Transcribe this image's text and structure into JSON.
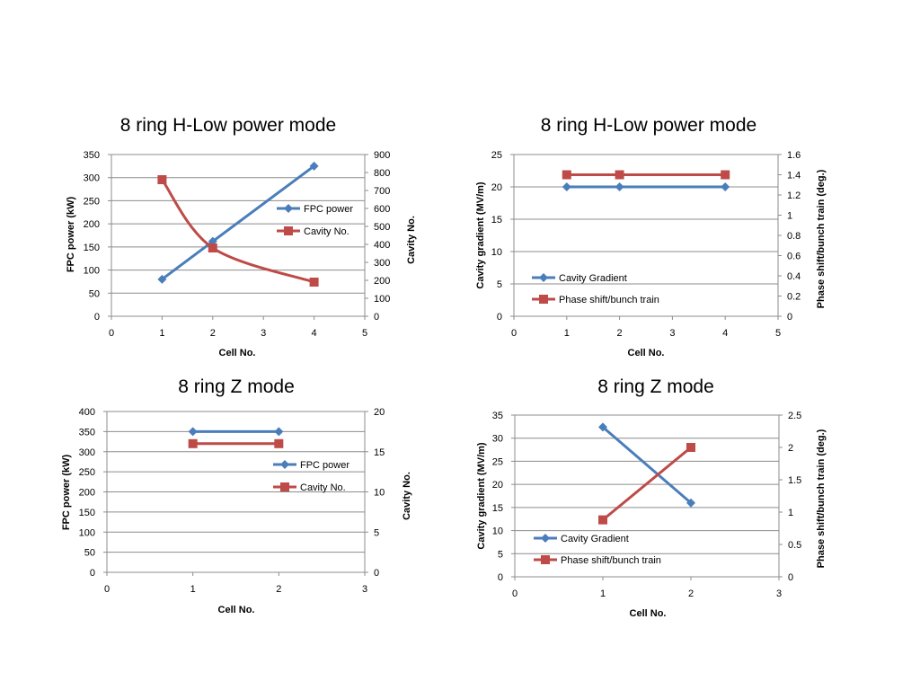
{
  "chart_data": [
    {
      "type": "line",
      "title": "8 ring H-Low power mode",
      "xlabel": "Cell No.",
      "ylabel": "FPC power (kW)",
      "y2label": "Cavity No.",
      "xlim": [
        0,
        5
      ],
      "xticks": [
        "0",
        "1",
        "2",
        "3",
        "4",
        "5"
      ],
      "ylim": [
        0,
        350
      ],
      "yticks": [
        "0",
        "50",
        "100",
        "150",
        "200",
        "250",
        "300",
        "350"
      ],
      "y2lim": [
        0,
        900
      ],
      "y2ticks": [
        "0",
        "100",
        "200",
        "300",
        "400",
        "500",
        "600",
        "700",
        "800",
        "900"
      ],
      "grid": true,
      "legend_position": "center-right",
      "series": [
        {
          "name": "FPC power",
          "axis": "left",
          "color": "#4a7ebb",
          "marker": "diamond",
          "smooth": false,
          "x": [
            1,
            2,
            4
          ],
          "values": [
            80,
            162,
            325
          ]
        },
        {
          "name": "Cavity No.",
          "axis": "right",
          "color": "#be4b48",
          "marker": "square",
          "smooth": true,
          "x": [
            1,
            2,
            4
          ],
          "values": [
            760,
            380,
            190
          ]
        }
      ]
    },
    {
      "type": "line",
      "title": "8 ring H-Low power mode",
      "xlabel": "Cell No.",
      "ylabel": "Cavity gradient (MV/m)",
      "y2label": "Phase shift/bunch train (deg.)",
      "xlim": [
        0,
        5
      ],
      "xticks": [
        "0",
        "1",
        "2",
        "3",
        "4",
        "5"
      ],
      "ylim": [
        0,
        25
      ],
      "yticks": [
        "0",
        "5",
        "10",
        "15",
        "20",
        "25"
      ],
      "y2lim": [
        0,
        1.6
      ],
      "y2ticks": [
        "0",
        "0.2",
        "0.4",
        "0.6",
        "0.8",
        "1",
        "1.2",
        "1.4",
        "1.6"
      ],
      "grid": true,
      "legend_position": "bottom-left",
      "series": [
        {
          "name": "Cavity Gradient",
          "axis": "left",
          "color": "#4a7ebb",
          "marker": "diamond",
          "smooth": false,
          "x": [
            1,
            2,
            4
          ],
          "values": [
            20,
            20,
            20
          ]
        },
        {
          "name": "Phase shift/bunch train",
          "axis": "right",
          "color": "#be4b48",
          "marker": "square",
          "smooth": false,
          "x": [
            1,
            2,
            4
          ],
          "values": [
            1.4,
            1.4,
            1.4
          ]
        }
      ]
    },
    {
      "type": "line",
      "title": "8 ring Z mode",
      "xlabel": "Cell No.",
      "ylabel": "FPC power (kW)",
      "y2label": "Cavity No.",
      "xlim": [
        0,
        3
      ],
      "xticks": [
        "0",
        "1",
        "2",
        "3"
      ],
      "ylim": [
        0,
        400
      ],
      "yticks": [
        "0",
        "50",
        "100",
        "150",
        "200",
        "250",
        "300",
        "350",
        "400"
      ],
      "y2lim": [
        0,
        20
      ],
      "y2ticks": [
        "0",
        "5",
        "10",
        "15",
        "20"
      ],
      "grid": true,
      "legend_position": "center-right",
      "series": [
        {
          "name": "FPC power",
          "axis": "left",
          "color": "#4a7ebb",
          "marker": "diamond",
          "smooth": false,
          "x": [
            1,
            2
          ],
          "values": [
            350,
            350
          ]
        },
        {
          "name": "Cavity No.",
          "axis": "right",
          "color": "#be4b48",
          "marker": "square",
          "smooth": false,
          "x": [
            1,
            2
          ],
          "values": [
            16,
            16
          ]
        }
      ]
    },
    {
      "type": "line",
      "title": "8 ring Z mode",
      "xlabel": "Cell No.",
      "ylabel": "Cavity gradient (MV/m)",
      "y2label": "Phase shift/bunch train (deg.)",
      "xlim": [
        0,
        3
      ],
      "xticks": [
        "0",
        "1",
        "2",
        "3"
      ],
      "ylim": [
        0,
        35
      ],
      "yticks": [
        "0",
        "5",
        "10",
        "15",
        "20",
        "25",
        "30",
        "35"
      ],
      "y2lim": [
        0,
        2.5
      ],
      "y2ticks": [
        "0",
        "0.5",
        "1",
        "1.5",
        "2",
        "2.5"
      ],
      "grid": true,
      "legend_position": "bottom-left",
      "series": [
        {
          "name": "Cavity Gradient",
          "axis": "left",
          "color": "#4a7ebb",
          "marker": "diamond",
          "smooth": false,
          "x": [
            1,
            2
          ],
          "values": [
            32.4,
            16
          ]
        },
        {
          "name": "Phase shift/bunch train",
          "axis": "right",
          "color": "#be4b48",
          "marker": "square",
          "smooth": false,
          "x": [
            1,
            2
          ],
          "values": [
            0.88,
            2
          ]
        }
      ]
    }
  ]
}
